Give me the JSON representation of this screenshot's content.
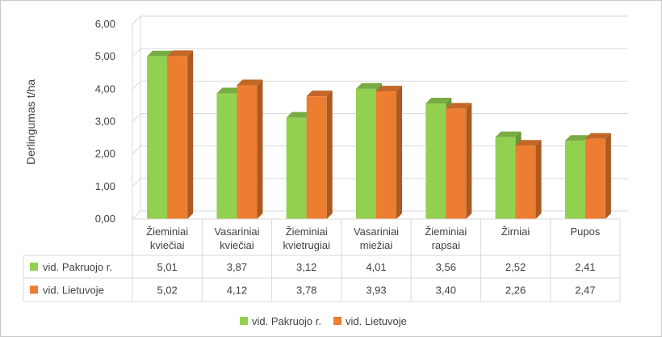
{
  "chart_data": {
    "type": "bar",
    "title": "",
    "xlabel": "",
    "ylabel": "Derlingumas t/ha",
    "ylim": [
      0,
      6
    ],
    "y_ticks": [
      "0,00",
      "1,00",
      "2,00",
      "3,00",
      "4,00",
      "5,00",
      "6,00"
    ],
    "grid": true,
    "legend_position": "bottom",
    "categories": [
      [
        "Žieminiai",
        "kviečiai"
      ],
      [
        "Vasariniai",
        "kviečiai"
      ],
      [
        "Žieminiai",
        "kvietrugiai"
      ],
      [
        "Vasariniai",
        "miežiai"
      ],
      [
        "Žieminiai",
        "rapsai"
      ],
      [
        "Žirniai"
      ],
      [
        "Pupos"
      ]
    ],
    "series": [
      {
        "name": "vid. Pakruojo r.",
        "color": "#92d050",
        "values": [
          5.01,
          3.87,
          3.12,
          4.01,
          3.56,
          2.52,
          2.41
        ],
        "value_labels": [
          "5,01",
          "3,87",
          "3,12",
          "4,01",
          "3,56",
          "2,52",
          "2,41"
        ]
      },
      {
        "name": "vid. Lietuvoje",
        "color": "#ed7d31",
        "values": [
          5.02,
          4.12,
          3.78,
          3.93,
          3.4,
          2.26,
          2.47
        ],
        "value_labels": [
          "5,02",
          "4,12",
          "3,78",
          "3,93",
          "3,40",
          "2,26",
          "2,47"
        ]
      }
    ]
  }
}
